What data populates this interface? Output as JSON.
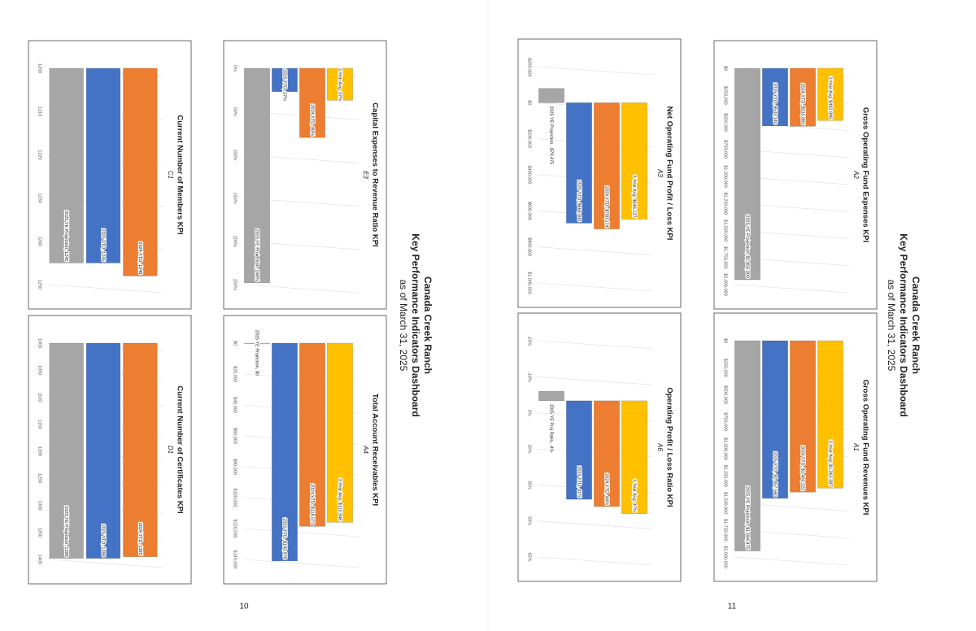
{
  "pages": [
    {
      "header": {
        "title": "Canada Creek Ranch",
        "subtitle": "Key Performance Indicators Dashboard",
        "date": "as of  March 31, 2025"
      },
      "page_number": "10"
    },
    {
      "header": {
        "title": "Canada Creek Ranch",
        "subtitle": "Key Performance Indicators Dashboard",
        "date": "as of  March 31, 2025"
      },
      "page_number": "11"
    }
  ],
  "chart_data": [
    {
      "type": "bar",
      "title": "Gross Operating Fund Expenses KPI",
      "subtitle": "A2",
      "values": [
        1955000,
        533140,
        535885,
        482996
      ],
      "value_labels": [
        "2025 YE Projection, $1,955,000",
        "2025 YTD, $533,140",
        "2024 YTD, $535,885",
        "3 Year Avg, $482,996"
      ],
      "colors": [
        "#a6a6a6",
        "#4472c4",
        "#ed7d31",
        "#ffc000"
      ],
      "ylim": [
        0,
        2000000
      ],
      "yticks": [
        {
          "value": 0,
          "label": "$0"
        },
        {
          "value": 250000,
          "label": "$250,000"
        },
        {
          "value": 500000,
          "label": "$500,000"
        },
        {
          "value": 750000,
          "label": "$750,000"
        },
        {
          "value": 1000000,
          "label": "$1,000,000"
        },
        {
          "value": 1250000,
          "label": "$1,250,000"
        },
        {
          "value": 1500000,
          "label": "$1,500,000"
        },
        {
          "value": 1750000,
          "label": "$1,750,000"
        },
        {
          "value": 2000000,
          "label": "$2,000,000"
        }
      ],
      "grid": true
    },
    {
      "type": "bar",
      "title": "Net Operating Fund Profit / Loss KPI",
      "subtitle": "A3",
      "values": [
        -79475,
        668000,
        700174,
        646127
      ],
      "value_labels": [
        "2025 YE Projection, -$79,475",
        "2025 YTD, $668,000",
        "2024 YTD, $700,174",
        "3 Year Avg, $646,127"
      ],
      "colors": [
        "#a6a6a6",
        "#4472c4",
        "#ed7d31",
        "#ffc000"
      ],
      "ylim": [
        -200000,
        1000000
      ],
      "yticks": [
        {
          "value": -200000,
          "label": "-$200,000"
        },
        {
          "value": 0,
          "label": "$0"
        },
        {
          "value": 200000,
          "label": "$200,000"
        },
        {
          "value": 400000,
          "label": "$400,000"
        },
        {
          "value": 600000,
          "label": "$600,000"
        },
        {
          "value": 800000,
          "label": "$800,000"
        },
        {
          "value": 1000000,
          "label": "$1,000,000"
        }
      ],
      "grid": true
    },
    {
      "type": "bar",
      "title": "Gross Operating Fund Revenues KPI",
      "subtitle": "A1",
      "values": [
        1944475,
        1457560,
        1400222,
        1363387
      ],
      "value_labels": [
        "2025 YE Projection, $1,944,475",
        "2025 YTD, $1,457,560",
        "2024 YTD, $1,400,222",
        "3 Year Avg, $1,363,387"
      ],
      "colors": [
        "#a6a6a6",
        "#4472c4",
        "#ed7d31",
        "#ffc000"
      ],
      "ylim": [
        0,
        2000000
      ],
      "yticks": [
        {
          "value": 0,
          "label": "$0"
        },
        {
          "value": 250000,
          "label": "$250,000"
        },
        {
          "value": 500000,
          "label": "$500,000"
        },
        {
          "value": 750000,
          "label": "$750,000"
        },
        {
          "value": 1000000,
          "label": "$1,000,000"
        },
        {
          "value": 1250000,
          "label": "$1,250,000"
        },
        {
          "value": 1500000,
          "label": "$1,500,000"
        },
        {
          "value": 1750000,
          "label": "$1,750,000"
        },
        {
          "value": 2000000,
          "label": "$2,000,000"
        }
      ],
      "grid": true
    },
    {
      "type": "bar",
      "title": "Operating Profit / Loss Ratio KPI",
      "subtitle": "A6",
      "values": [
        -4,
        41,
        44,
        47
      ],
      "value_labels": [
        "2025 YE Proj Ratio, -4%",
        "2025 YTD, 41%",
        "2024 YTD, 44%",
        "3 Year Avg, 47%"
      ],
      "colors": [
        "#a6a6a6",
        "#4472c4",
        "#ed7d31",
        "#ffc000"
      ],
      "ylim": [
        -25,
        65
      ],
      "yticks": [
        {
          "value": -25,
          "label": "-25%"
        },
        {
          "value": -10,
          "label": "-10%"
        },
        {
          "value": 5,
          "label": "5%"
        },
        {
          "value": 20,
          "label": "20%"
        },
        {
          "value": 35,
          "label": "35%"
        },
        {
          "value": 50,
          "label": "50%"
        },
        {
          "value": 65,
          "label": "65%"
        }
      ],
      "grid": true
    },
    {
      "type": "bar",
      "title": "Capital Expenses to Revenue Ratio KPI",
      "subtitle": "E3",
      "values": [
        248,
        27,
        80,
        37
      ],
      "value_labels": [
        "2025 YE Projection, 248%",
        "2025 YTD, 27%",
        "2024 YTD, 80%",
        "3 Year Avg, 37%"
      ],
      "colors": [
        "#a6a6a6",
        "#4472c4",
        "#ed7d31",
        "#ffc000"
      ],
      "ylim": [
        0,
        250
      ],
      "yticks": [
        {
          "value": 0,
          "label": "0%"
        },
        {
          "value": 50,
          "label": "50%"
        },
        {
          "value": 100,
          "label": "100%"
        },
        {
          "value": 150,
          "label": "150%"
        },
        {
          "value": 200,
          "label": "200%"
        },
        {
          "value": 250,
          "label": "250%"
        }
      ],
      "grid": true
    },
    {
      "type": "bar",
      "title": "Current Number of Members KPI",
      "subtitle": "C1",
      "values": [
        1245,
        1245,
        1248
      ],
      "value_labels": [
        "2025 YE Projection, 1245",
        "2025 YTD, 1245",
        "2024 YTD, 1248"
      ],
      "colors": [
        "#a6a6a6",
        "#4472c4",
        "#ed7d31"
      ],
      "ylim": [
        1200,
        1250
      ],
      "yticks": [
        1200,
        1210,
        1220,
        1230,
        1240,
        1250
      ],
      "grid": true
    },
    {
      "type": "bar",
      "title": "Total Account Receivables KPI",
      "subtitle": "A4",
      "values": [
        0,
        140978,
        118573,
        115946
      ],
      "value_labels": [
        "2025 YE Projection, $0",
        "2025 YTD, $140,978",
        "2024 YTD, $118,573",
        "3 Year Avg, $115,946"
      ],
      "colors": [
        "#a6a6a6",
        "#4472c4",
        "#ed7d31",
        "#ffc000"
      ],
      "ylim": [
        0,
        140000
      ],
      "yticks": [
        {
          "value": 0,
          "label": "$0"
        },
        {
          "value": 20000,
          "label": "$20,000"
        },
        {
          "value": 40000,
          "label": "$40,000"
        },
        {
          "value": 60000,
          "label": "$60,000"
        },
        {
          "value": 80000,
          "label": "$80,000"
        },
        {
          "value": 100000,
          "label": "$100,000"
        },
        {
          "value": 120000,
          "label": "$120,000"
        },
        {
          "value": 140000,
          "label": "$140,000"
        }
      ],
      "grid": true
    },
    {
      "type": "bar",
      "title": "Current Number of Certificates KPI",
      "subtitle": "D1",
      "values": [
        1398,
        1398,
        1395
      ],
      "value_labels": [
        "2025 YE Projection, 1398",
        "2025 YTD, 1398",
        "2024 YTD, 1395"
      ],
      "colors": [
        "#a6a6a6",
        "#4472c4",
        "#ed7d31"
      ],
      "ylim": [
        1000,
        1400
      ],
      "yticks": [
        1000,
        1050,
        1100,
        1150,
        1200,
        1250,
        1300,
        1350,
        1400
      ],
      "grid": true
    }
  ]
}
